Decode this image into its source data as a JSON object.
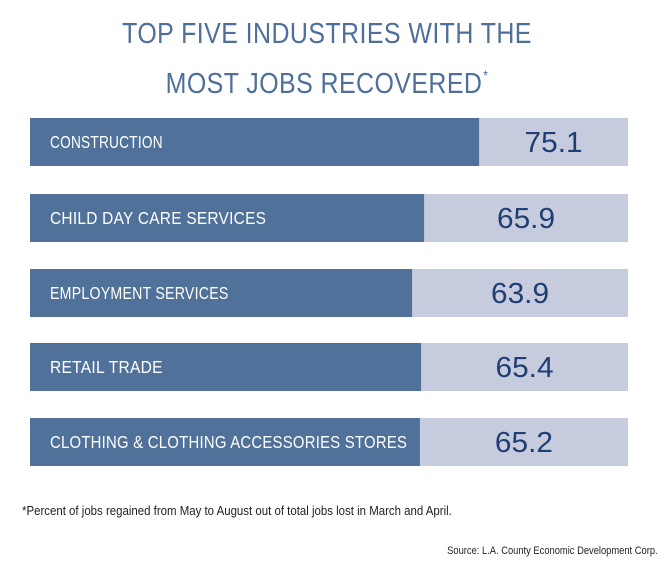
{
  "title": {
    "line1": "TOP FIVE INDUSTRIES WITH THE",
    "line2": "MOST JOBS RECOVERED",
    "marker": "*"
  },
  "footnote": "*Percent of jobs regained from May to August out of total jobs lost in March and April.",
  "source": "Source: L.A. County Economic Development Corp.",
  "colors": {
    "title": "#4e6f9a",
    "bar_fill": "#50729a",
    "bar_track": "#c6cbde",
    "label_text": "#ffffff",
    "value_text": "#1f3e73"
  },
  "chart_data": {
    "type": "bar",
    "orientation": "horizontal",
    "categories": [
      "CONSTRUCTION",
      "CHILD DAY CARE SERVICES",
      "EMPLOYMENT SERVICES",
      "RETAIL TRADE",
      "CLOTHING & CLOTHING ACCESSORIES STORES"
    ],
    "values": [
      75.1,
      65.9,
      63.9,
      65.4,
      65.2
    ],
    "value_labels": [
      "75.1",
      "65.9",
      "63.9",
      "65.4",
      "65.2"
    ],
    "unit": "percent",
    "xlim": [
      0,
      100
    ],
    "grid": false,
    "legend": "none"
  }
}
